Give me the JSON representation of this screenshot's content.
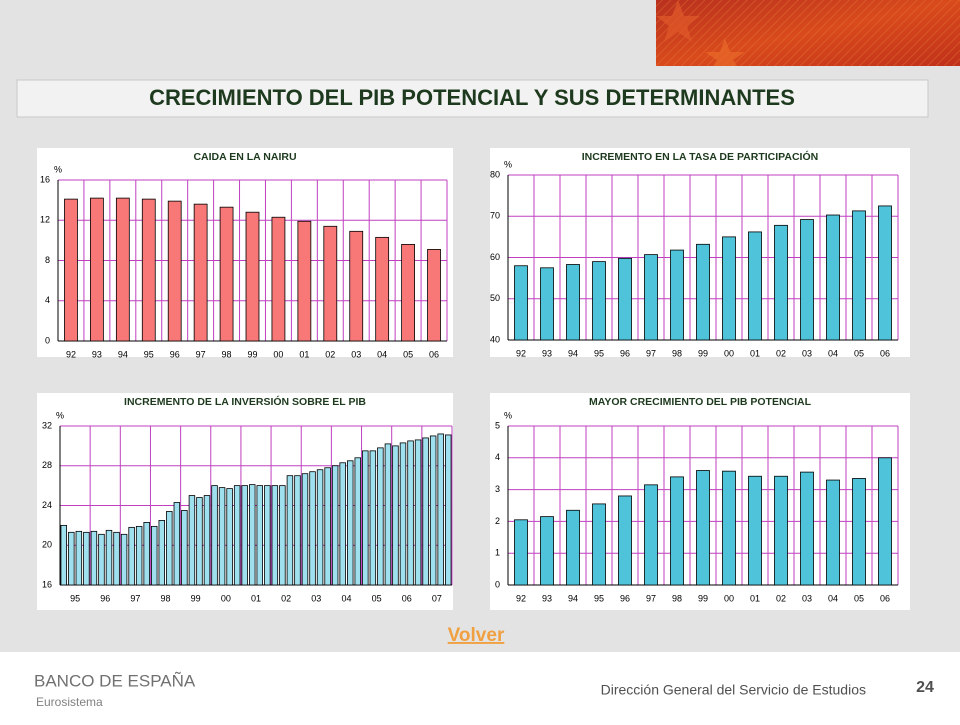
{
  "header": {
    "title": "CRECIMIENTO DEL PIB POTENCIAL Y SUS DETERMINANTES"
  },
  "chart_data": [
    {
      "type": "bar",
      "title": "CAIDA EN LA NAIRU",
      "ylabel": "%",
      "color": "#f87878",
      "grid": true,
      "categories": [
        "92",
        "93",
        "94",
        "95",
        "96",
        "97",
        "98",
        "99",
        "00",
        "01",
        "02",
        "03",
        "04",
        "05",
        "06"
      ],
      "values": [
        14.1,
        14.2,
        14.2,
        14.1,
        13.9,
        13.6,
        13.3,
        12.8,
        12.3,
        11.9,
        11.4,
        10.9,
        10.3,
        9.6,
        9.1
      ],
      "ylim": [
        0,
        16
      ],
      "yticks": [
        0,
        4,
        8,
        12,
        16
      ]
    },
    {
      "type": "bar",
      "title": "INCREMENTO EN LA TASA DE PARTICIPACIÓN",
      "ylabel": "%",
      "color": "#4fc3d9",
      "grid": true,
      "categories": [
        "92",
        "93",
        "94",
        "95",
        "96",
        "97",
        "98",
        "99",
        "00",
        "01",
        "02",
        "03",
        "04",
        "05",
        "06"
      ],
      "values": [
        58,
        57.5,
        58.3,
        59,
        59.8,
        60.7,
        61.8,
        63.2,
        65,
        66.2,
        67.8,
        69.2,
        70.3,
        71.3,
        72.5
      ],
      "ylim": [
        40,
        80
      ],
      "yticks": [
        40,
        50,
        60,
        70,
        80
      ]
    },
    {
      "type": "bar",
      "title": "INCREMENTO DE LA INVERSIÓN SOBRE EL PIB",
      "ylabel": "%",
      "color": "#9fe0ee",
      "grid": true,
      "categories": [
        null,
        null,
        "95",
        null,
        null,
        null,
        "96",
        null,
        null,
        null,
        "97",
        null,
        null,
        null,
        "98",
        null,
        null,
        null,
        "99",
        null,
        null,
        null,
        "00",
        null,
        null,
        null,
        "01",
        null,
        null,
        null,
        "02",
        null,
        null,
        null,
        "03",
        null,
        null,
        null,
        "04",
        null,
        null,
        null,
        "05",
        null,
        null,
        null,
        "06",
        null,
        null,
        null,
        "07",
        null
      ],
      "values": [
        22.0,
        21.3,
        21.4,
        21.3,
        21.4,
        21.1,
        21.5,
        21.3,
        21.1,
        21.8,
        21.9,
        22.3,
        21.9,
        22.5,
        23.4,
        24.3,
        23.5,
        25.0,
        24.8,
        25.0,
        26.0,
        25.8,
        25.7,
        26.0,
        26.0,
        26.1,
        26.0,
        26.0,
        26.0,
        26.0,
        27.0,
        27.0,
        27.2,
        27.4,
        27.6,
        27.8,
        28.0,
        28.3,
        28.5,
        28.8,
        29.5,
        29.5,
        29.8,
        30.2,
        30.0,
        30.3,
        30.5,
        30.6,
        30.8,
        31.0,
        31.2,
        31.1
      ],
      "ylim": [
        16,
        32
      ],
      "yticks": [
        16,
        20,
        24,
        28,
        32
      ]
    },
    {
      "type": "bar",
      "title": "MAYOR CRECIMIENTO DEL PIB POTENCIAL",
      "ylabel": "%",
      "color": "#4fc3d9",
      "grid": true,
      "categories": [
        "92",
        "93",
        "94",
        "95",
        "96",
        "97",
        "98",
        "99",
        "00",
        "01",
        "02",
        "03",
        "04",
        "05",
        "06"
      ],
      "values": [
        2.05,
        2.15,
        2.35,
        2.55,
        2.8,
        3.15,
        3.4,
        3.6,
        3.58,
        3.42,
        3.42,
        3.55,
        3.3,
        3.35,
        4.0
      ],
      "ylim": [
        0,
        5
      ],
      "yticks": [
        0,
        1,
        2,
        3,
        4,
        5
      ]
    }
  ],
  "link": "Volver",
  "footer": {
    "logo": "BANCO DE ESPAÑA",
    "sublogo": "Eurosistema",
    "department": "Dirección General del Servicio de Estudios",
    "page": "24"
  }
}
